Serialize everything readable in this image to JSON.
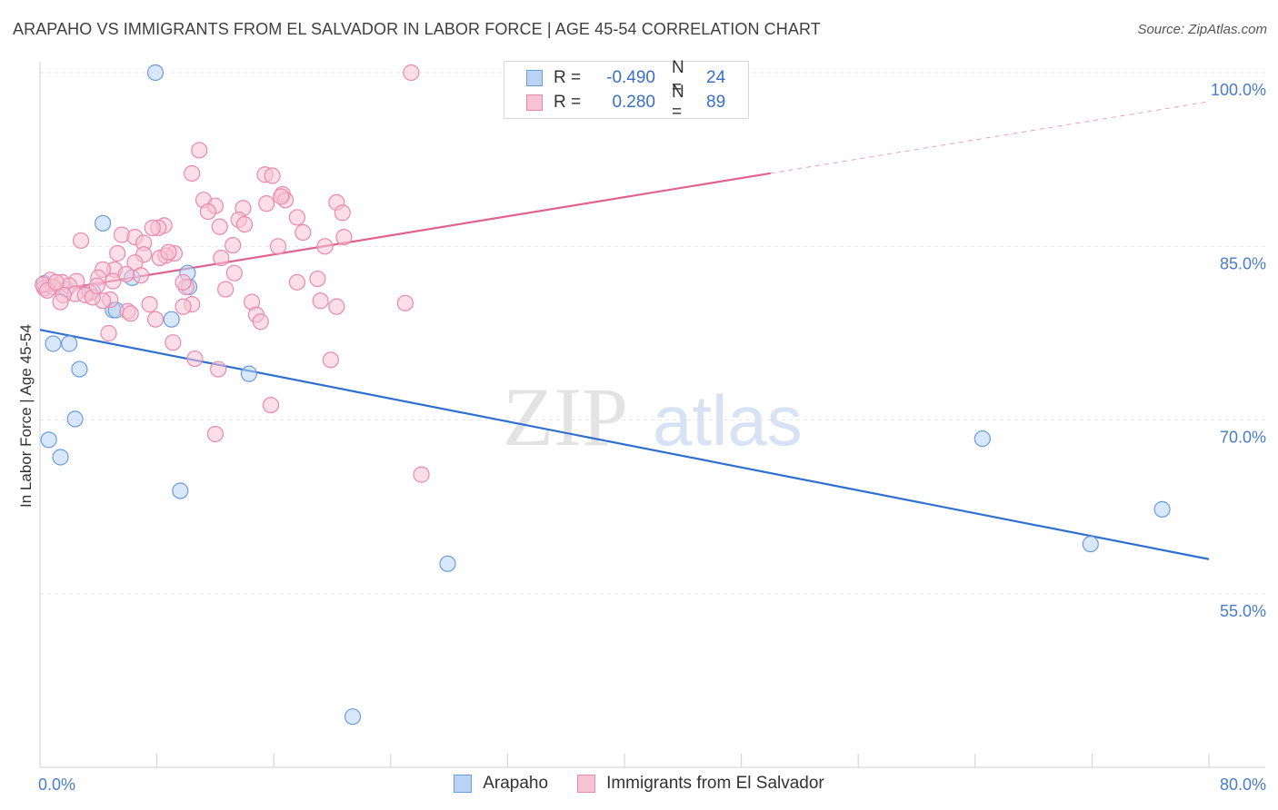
{
  "header": {
    "title": "ARAPAHO VS IMMIGRANTS FROM EL SALVADOR IN LABOR FORCE | AGE 45-54 CORRELATION CHART",
    "source": "Source: ZipAtlas.com"
  },
  "legend": {
    "r_label": "R =",
    "n_label": "N =",
    "series": [
      {
        "r": "-0.490",
        "n": "24"
      },
      {
        "r": "0.280",
        "n": "89"
      }
    ]
  },
  "watermark": {
    "zip": "ZIP",
    "atlas": "atlas"
  },
  "colors": {
    "arapaho_fill": "#b8d3f4",
    "arapaho_stroke": "#6a9be0",
    "arapaho_line": "#2f6fd0",
    "salvador_fill": "#f7c3d4",
    "salvador_stroke": "#e98aab",
    "salvador_line": "#e0628f",
    "tick_text": "#4a7cc9"
  },
  "chart_data": {
    "type": "scatter",
    "title": "ARAPAHO VS IMMIGRANTS FROM EL SALVADOR IN LABOR FORCE | AGE 45-54 CORRELATION CHART",
    "xlabel": "",
    "ylabel": "In Labor Force | Age 45-54",
    "xlim": [
      0,
      80
    ],
    "ylim": [
      42,
      103
    ],
    "x_tick_labels": [
      "0.0%",
      "80.0%"
    ],
    "y_ticks": [
      {
        "value": 100,
        "label": "100.0%"
      },
      {
        "value": 85,
        "label": "85.0%"
      },
      {
        "value": 70,
        "label": "70.0%"
      },
      {
        "value": 55,
        "label": "55.0%"
      }
    ],
    "series": [
      {
        "name": "Arapaho",
        "trend": {
          "x0": 0,
          "y0": 77.8,
          "x1": 80,
          "y1": 58.0,
          "solid_to": 80
        },
        "points": [
          [
            7.9,
            100.0
          ],
          [
            4.3,
            87.0
          ],
          [
            10.1,
            82.7
          ],
          [
            6.3,
            82.3
          ],
          [
            10.2,
            81.5
          ],
          [
            3.6,
            81.1
          ],
          [
            1.8,
            81.3
          ],
          [
            5.0,
            79.5
          ],
          [
            5.2,
            79.5
          ],
          [
            9.0,
            78.7
          ],
          [
            0.9,
            76.6
          ],
          [
            2.0,
            76.6
          ],
          [
            2.7,
            74.4
          ],
          [
            14.3,
            74.0
          ],
          [
            2.4,
            70.1
          ],
          [
            0.6,
            68.3
          ],
          [
            1.4,
            66.8
          ],
          [
            9.6,
            63.9
          ],
          [
            27.9,
            57.6
          ],
          [
            21.4,
            44.4
          ],
          [
            64.5,
            68.4
          ],
          [
            71.9,
            59.3
          ],
          [
            76.8,
            62.3
          ],
          [
            0.3,
            81.8
          ]
        ]
      },
      {
        "name": "Immigrants from El Salvador",
        "trend": {
          "x0": 0,
          "y0": 81.0,
          "x1": 80,
          "y1": 97.5,
          "solid_to": 50
        },
        "points": [
          [
            25.4,
            100.0
          ],
          [
            10.9,
            93.3
          ],
          [
            10.4,
            91.3
          ],
          [
            15.4,
            91.2
          ],
          [
            15.9,
            91.1
          ],
          [
            11.2,
            89.0
          ],
          [
            16.6,
            89.5
          ],
          [
            16.8,
            89.0
          ],
          [
            15.5,
            88.7
          ],
          [
            20.3,
            88.8
          ],
          [
            12.0,
            88.5
          ],
          [
            13.9,
            88.3
          ],
          [
            11.5,
            88.0
          ],
          [
            20.7,
            87.9
          ],
          [
            13.6,
            87.3
          ],
          [
            17.6,
            87.5
          ],
          [
            8.5,
            86.8
          ],
          [
            8.1,
            86.6
          ],
          [
            7.7,
            86.6
          ],
          [
            18.0,
            86.2
          ],
          [
            5.6,
            86.0
          ],
          [
            6.5,
            85.8
          ],
          [
            20.8,
            85.8
          ],
          [
            2.8,
            85.5
          ],
          [
            7.1,
            85.3
          ],
          [
            13.2,
            85.1
          ],
          [
            16.3,
            85.0
          ],
          [
            19.5,
            85.0
          ],
          [
            5.3,
            84.4
          ],
          [
            9.2,
            84.4
          ],
          [
            7.1,
            84.3
          ],
          [
            8.6,
            84.2
          ],
          [
            8.2,
            84.0
          ],
          [
            12.4,
            84.0
          ],
          [
            6.5,
            83.6
          ],
          [
            5.1,
            83.0
          ],
          [
            4.3,
            83.0
          ],
          [
            13.3,
            82.7
          ],
          [
            6.9,
            82.5
          ],
          [
            4.0,
            82.3
          ],
          [
            19.0,
            82.2
          ],
          [
            5.0,
            82.0
          ],
          [
            17.6,
            81.9
          ],
          [
            0.7,
            82.1
          ],
          [
            2.5,
            82.0
          ],
          [
            1.5,
            81.9
          ],
          [
            2.0,
            81.6
          ],
          [
            0.3,
            81.4
          ],
          [
            0.9,
            81.5
          ],
          [
            10.0,
            81.5
          ],
          [
            12.7,
            81.3
          ],
          [
            3.4,
            81.0
          ],
          [
            2.4,
            80.9
          ],
          [
            3.1,
            80.8
          ],
          [
            1.6,
            80.8
          ],
          [
            4.8,
            80.4
          ],
          [
            4.3,
            80.3
          ],
          [
            1.4,
            80.2
          ],
          [
            14.5,
            80.2
          ],
          [
            19.2,
            80.3
          ],
          [
            25.0,
            80.1
          ],
          [
            7.5,
            80.0
          ],
          [
            10.4,
            80.0
          ],
          [
            9.8,
            79.8
          ],
          [
            20.3,
            79.8
          ],
          [
            6.0,
            79.4
          ],
          [
            6.2,
            79.2
          ],
          [
            14.8,
            79.1
          ],
          [
            15.1,
            78.5
          ],
          [
            7.9,
            78.7
          ],
          [
            4.7,
            77.5
          ],
          [
            9.1,
            76.7
          ],
          [
            10.6,
            75.3
          ],
          [
            19.9,
            75.2
          ],
          [
            12.2,
            74.4
          ],
          [
            15.8,
            71.3
          ],
          [
            12.0,
            68.8
          ],
          [
            26.1,
            65.3
          ],
          [
            0.2,
            81.7
          ],
          [
            0.5,
            81.2
          ],
          [
            1.1,
            81.9
          ],
          [
            3.6,
            80.6
          ],
          [
            9.8,
            81.9
          ],
          [
            12.3,
            86.7
          ],
          [
            5.9,
            82.6
          ],
          [
            16.5,
            89.3
          ],
          [
            14.0,
            86.9
          ],
          [
            8.8,
            84.5
          ],
          [
            3.9,
            81.6
          ]
        ]
      }
    ],
    "legend": [
      "Arapaho",
      "Immigrants from El Salvador"
    ]
  }
}
